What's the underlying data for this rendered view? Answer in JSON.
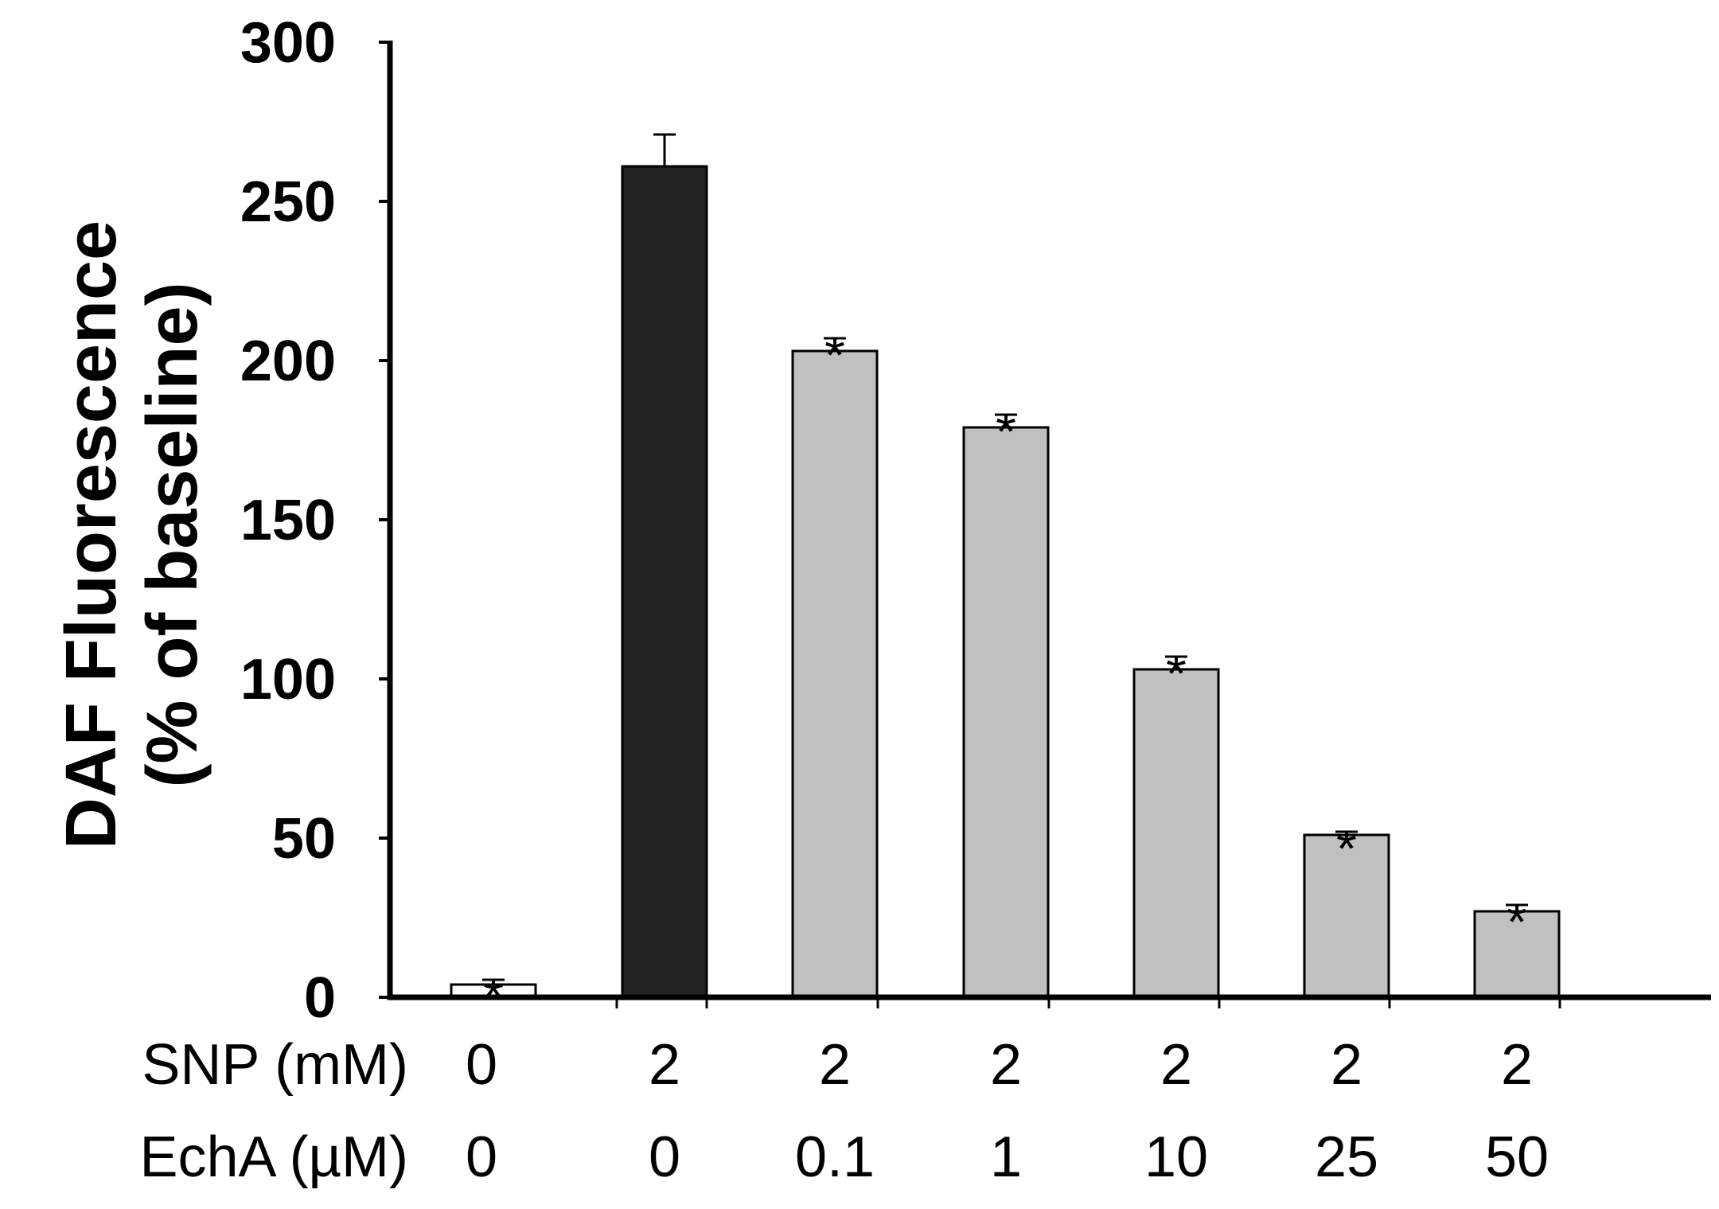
{
  "chart_data": {
    "type": "bar",
    "title": "",
    "xlabel": "",
    "ylabel_line1": "DAF Fluorescence",
    "ylabel_line2": "(% of baseline)",
    "ylim": [
      0,
      300
    ],
    "yticks": [
      0,
      50,
      100,
      150,
      200,
      250,
      300
    ],
    "grid": false,
    "categories": [
      "0/0",
      "2/0",
      "2/0.1",
      "2/1",
      "2/10",
      "2/25",
      "2/50"
    ],
    "row_labels": [
      {
        "name": "SNP (mM)",
        "values": [
          "0",
          "2",
          "2",
          "2",
          "2",
          "2",
          "2"
        ]
      },
      {
        "name": "EchA (µM)",
        "values": [
          "0",
          "0",
          "0.1",
          "1",
          "10",
          "25",
          "50"
        ]
      }
    ],
    "values": [
      4,
      261,
      203,
      179,
      103,
      51,
      27
    ],
    "errors": [
      1.5,
      10,
      4,
      4,
      4,
      1,
      2
    ],
    "significance": [
      "*",
      "",
      "*",
      "*",
      "*",
      "*",
      "*"
    ],
    "bar_colors": [
      "#ffffff",
      "#222222",
      "#c0c0c0",
      "#c0c0c0",
      "#c0c0c0",
      "#c0c0c0",
      "#c0c0c0"
    ]
  }
}
